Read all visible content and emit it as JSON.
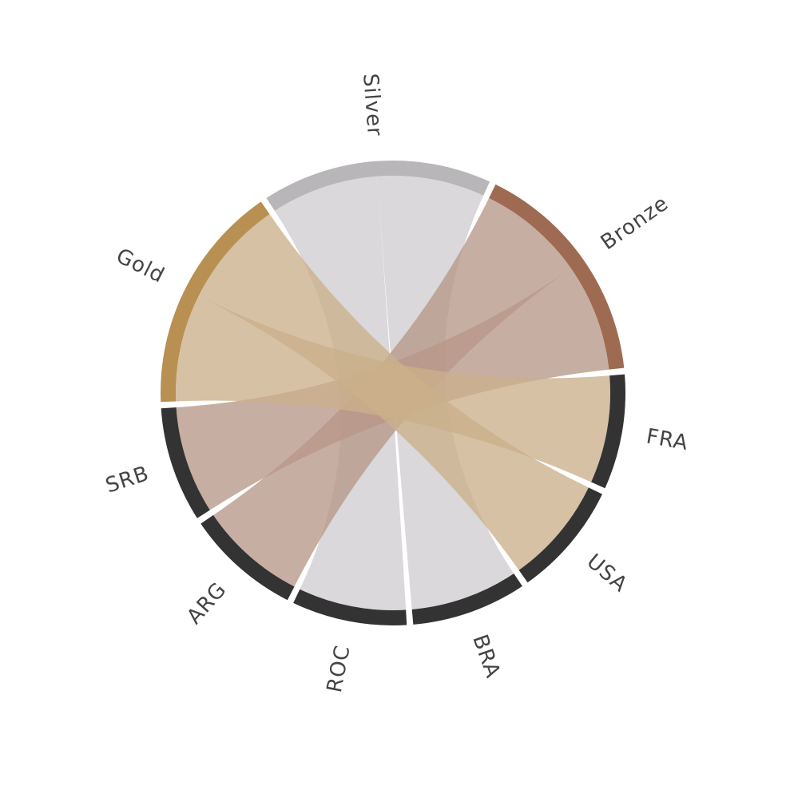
{
  "chart_data": {
    "type": "chord",
    "nodes": [
      {
        "id": "silver",
        "label": "Silver",
        "group": "medal",
        "color": "#b8b6b8",
        "ribbon_color": "#cfcdcf"
      },
      {
        "id": "bronze",
        "label": "Bronze",
        "group": "medal",
        "color": "#9e6b52",
        "ribbon_color": "#b79788"
      },
      {
        "id": "fra",
        "label": "FRA",
        "group": "country",
        "color": "#333333"
      },
      {
        "id": "usa",
        "label": "USA",
        "group": "country",
        "color": "#333333"
      },
      {
        "id": "bra",
        "label": "BRA",
        "group": "country",
        "color": "#333333"
      },
      {
        "id": "roc",
        "label": "ROC",
        "group": "country",
        "color": "#333333"
      },
      {
        "id": "arg",
        "label": "ARG",
        "group": "country",
        "color": "#333333"
      },
      {
        "id": "srb",
        "label": "SRB",
        "group": "country",
        "color": "#333333"
      },
      {
        "id": "gold",
        "label": "Gold",
        "group": "medal",
        "color": "#b79052",
        "ribbon_color": "#cbb08a"
      }
    ],
    "links": [
      {
        "source": "silver",
        "target": "roc",
        "value": 1
      },
      {
        "source": "silver",
        "target": "bra",
        "value": 1
      },
      {
        "source": "bronze",
        "target": "arg",
        "value": 1
      },
      {
        "source": "bronze",
        "target": "srb",
        "value": 1
      },
      {
        "source": "gold",
        "target": "fra",
        "value": 1
      },
      {
        "source": "gold",
        "target": "usa",
        "value": 1
      }
    ]
  }
}
